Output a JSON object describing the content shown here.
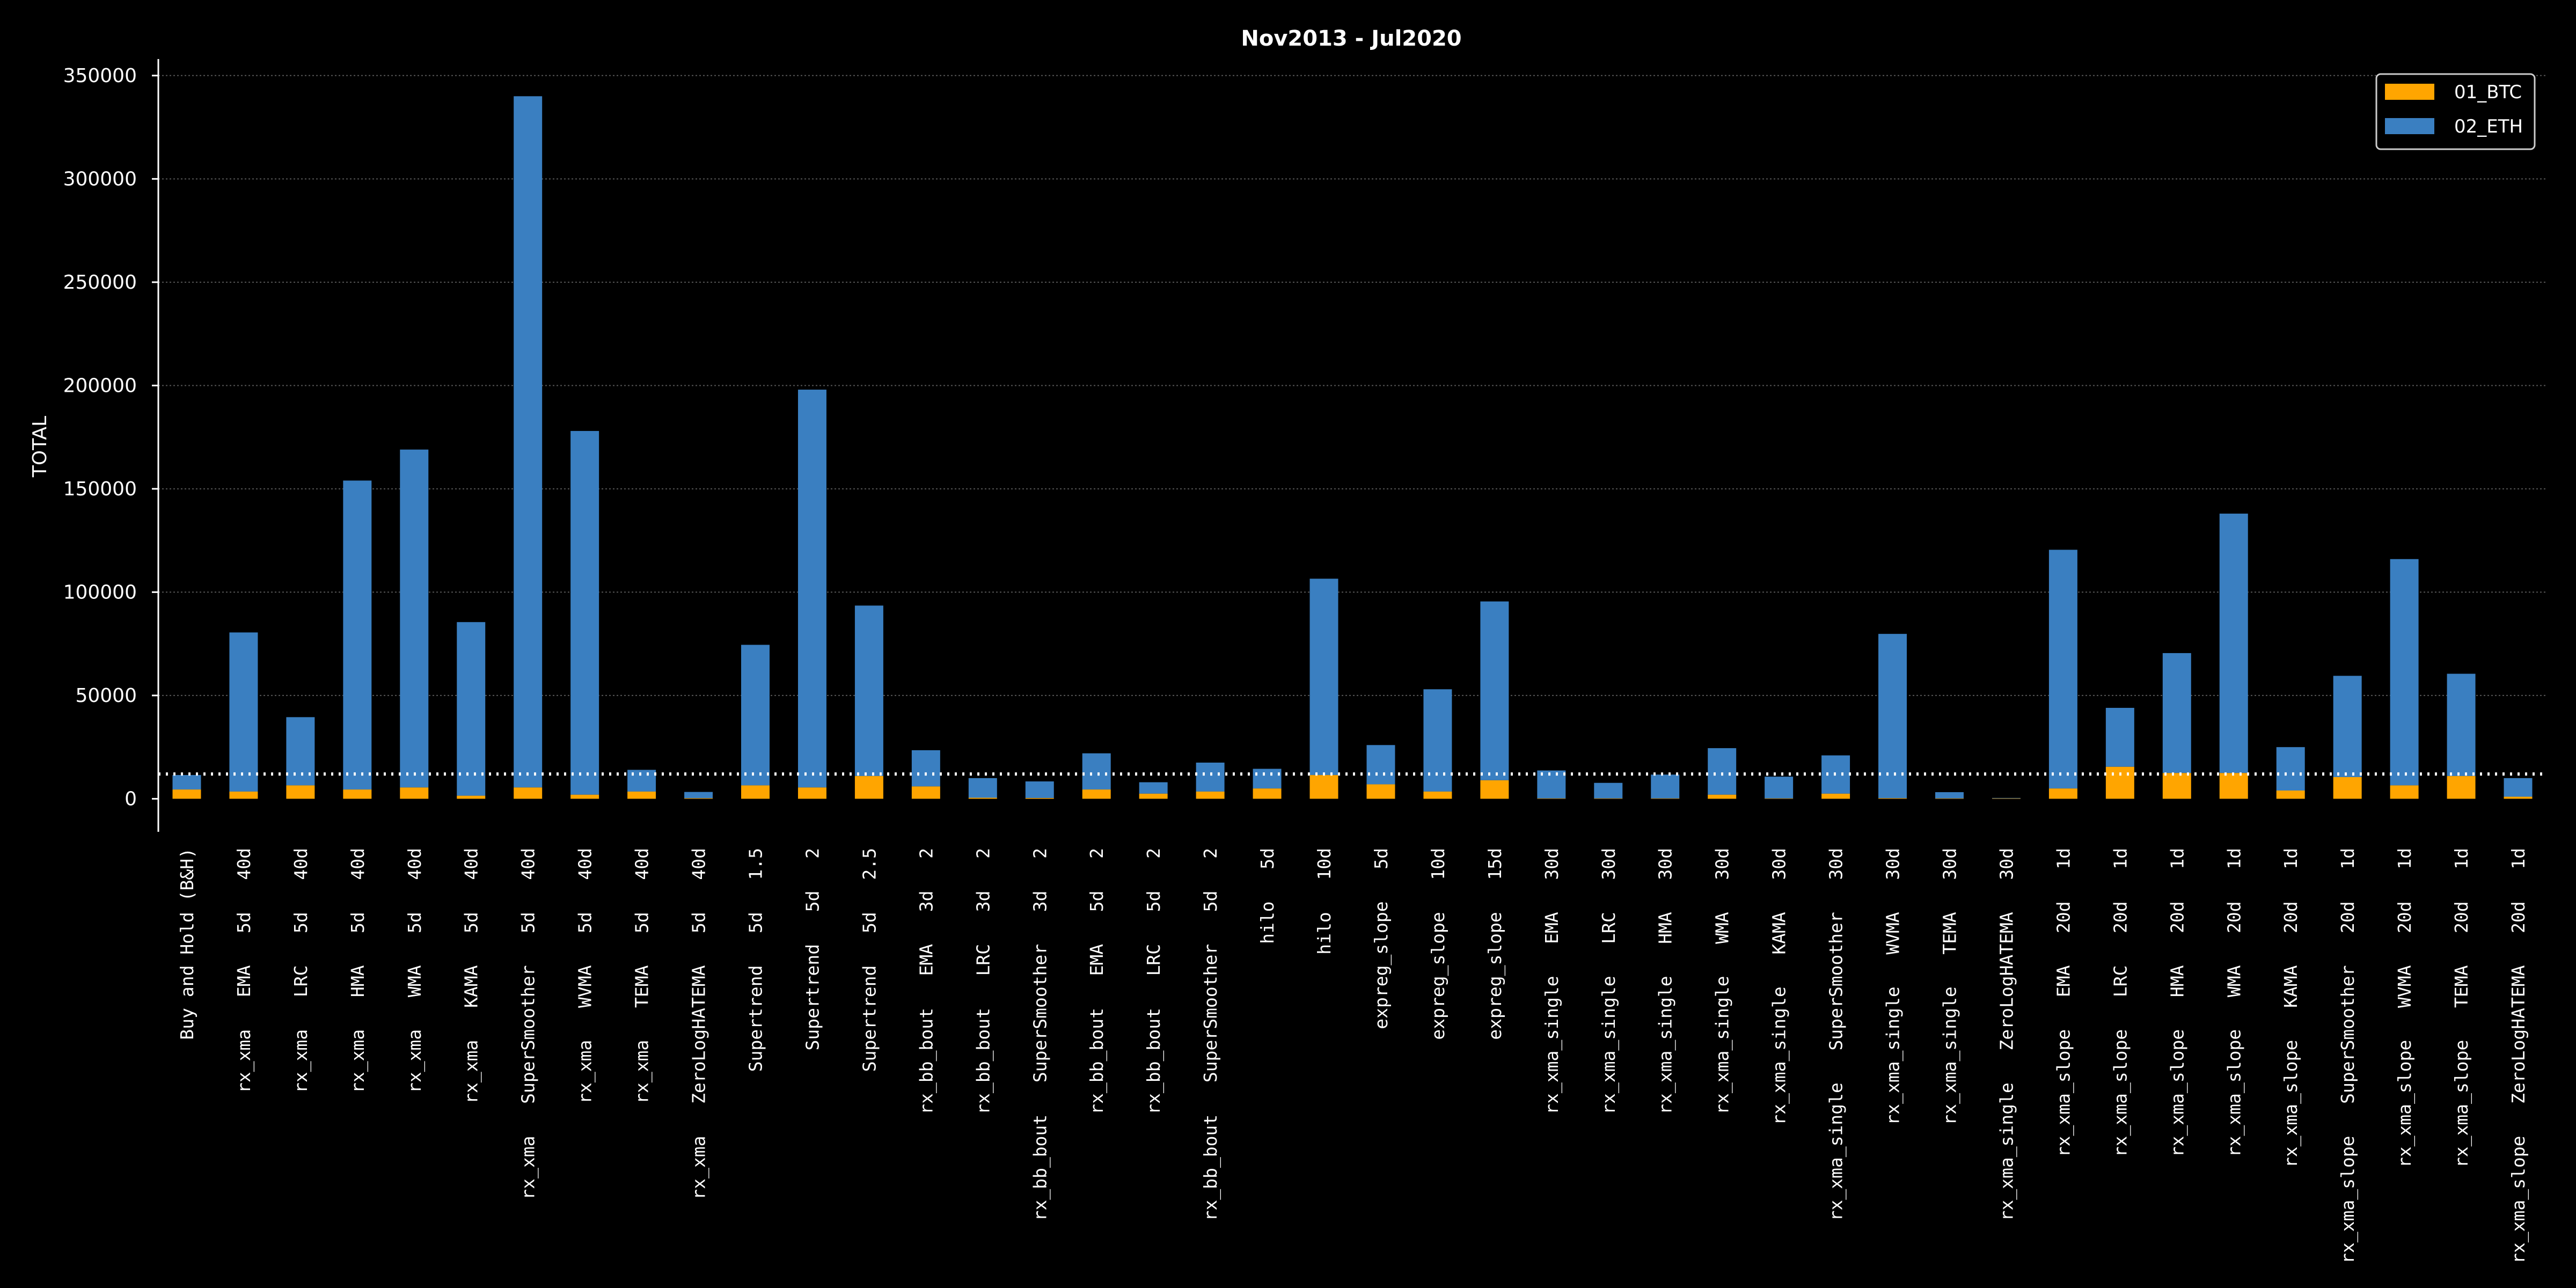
{
  "chart_data": {
    "type": "bar",
    "stacked": true,
    "title": "Nov2013  -  Jul2020",
    "xlabel": "",
    "ylabel": "TOTAL",
    "ylim": [
      -16000,
      358000
    ],
    "yticks": [
      0,
      50000,
      100000,
      150000,
      200000,
      250000,
      300000,
      350000
    ],
    "ytick_labels": [
      "0",
      "50000",
      "100000",
      "150000",
      "200000",
      "250000",
      "300000",
      "350000"
    ],
    "grid": true,
    "legend_position": "top-right",
    "reference_line": {
      "y": 12000,
      "style": "dotted",
      "color": "#ffffff"
    },
    "categories": [
      "Buy and Hold (B&H)",
      "rx_xma   EMA   5d   40d",
      "rx_xma   LRC   5d   40d",
      "rx_xma   HMA   5d   40d",
      "rx_xma   WMA   5d   40d",
      "rx_xma   KAMA   5d   40d",
      "rx_xma   SuperSmoother   5d   40d",
      "rx_xma   WVMA   5d   40d",
      "rx_xma   TEMA   5d   40d",
      "rx_xma   ZeroLogHATEMA   5d   40d",
      "Supertrend   5d   1.5",
      "Supertrend   5d   2",
      "Supertrend   5d   2.5",
      "rx_bb_bout   EMA   3d   2",
      "rx_bb_bout   LRC   3d   2",
      "rx_bb_bout   SuperSmoother   3d   2",
      "rx_bb_bout   EMA   5d   2",
      "rx_bb_bout   LRC   5d   2",
      "rx_bb_bout   SuperSmoother   5d   2",
      "hilo   5d",
      "hilo   10d",
      "expreg_slope   5d",
      "expreg_slope   10d",
      "expreg_slope   15d",
      "rx_xma_single   EMA   30d",
      "rx_xma_single   LRC   30d",
      "rx_xma_single   HMA   30d",
      "rx_xma_single   WMA   30d",
      "rx_xma_single   KAMA   30d",
      "rx_xma_single   SuperSmoother   30d",
      "rx_xma_single   WVMA   30d",
      "rx_xma_single   TEMA   30d",
      "rx_xma_single   ZeroLogHATEMA   30d",
      "rx_xma_slope   EMA   20d   1d",
      "rx_xma_slope   LRC   20d   1d",
      "rx_xma_slope   HMA   20d   1d",
      "rx_xma_slope   WMA   20d   1d",
      "rx_xma_slope   KAMA   20d   1d",
      "rx_xma_slope   SuperSmoother   20d   1d",
      "rx_xma_slope   WVMA   20d   1d",
      "rx_xma_slope   TEMA   20d   1d",
      "rx_xma_slope   ZeroLogHATEMA   20d   1d"
    ],
    "series": [
      {
        "name": "01_BTC",
        "color": "#ffa500",
        "values": [
          4500,
          3500,
          6500,
          4500,
          5500,
          1500,
          5500,
          2000,
          3500,
          300,
          6500,
          5500,
          11000,
          6000,
          500,
          400,
          4500,
          2500,
          3500,
          5000,
          11500,
          7000,
          3500,
          9000,
          200,
          200,
          200,
          2000,
          200,
          2500,
          300,
          200,
          200,
          5000,
          15500,
          12500,
          12500,
          4000,
          10500,
          6500,
          11000,
          1000
        ]
      },
      {
        "name": "02_ETH",
        "color": "#3a7fc1",
        "values": [
          7000,
          77000,
          33000,
          149500,
          163500,
          84000,
          334500,
          176000,
          10500,
          3000,
          68000,
          192500,
          82500,
          17500,
          9500,
          8000,
          17500,
          5500,
          14000,
          9500,
          95000,
          19000,
          49500,
          86500,
          13500,
          7500,
          11500,
          22500,
          10500,
          18500,
          79500,
          3000,
          200,
          115500,
          28500,
          58000,
          125500,
          21000,
          49000,
          109500,
          49500,
          9000
        ]
      }
    ]
  }
}
